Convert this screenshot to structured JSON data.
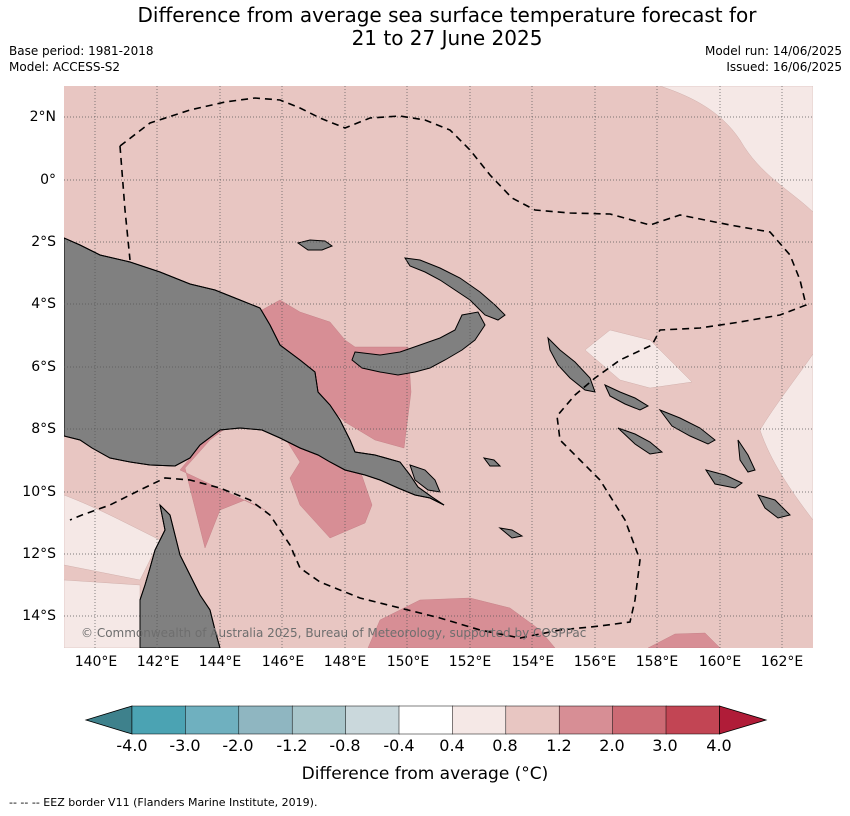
{
  "header": {
    "title_line1": "Difference from average sea surface temperature forecast for",
    "title_line2": "21 to 27 June 2025",
    "base_period": "Base period: 1981-2018",
    "model": "Model: ACCESS-S2",
    "model_run": "Model run: 14/06/2025",
    "issued": "Issued: 16/06/2025"
  },
  "map": {
    "latitude_labels": [
      "2°N",
      "0°",
      "2°S",
      "4°S",
      "6°S",
      "8°S",
      "10°S",
      "12°S",
      "14°S"
    ],
    "longitude_labels": [
      "140°E",
      "142°E",
      "144°E",
      "146°E",
      "148°E",
      "150°E",
      "152°E",
      "154°E",
      "156°E",
      "158°E",
      "160°E",
      "162°E"
    ],
    "copyright": "© Commonwealth of Australia 2025, Bureau of Meteorology, supported by COSPPac",
    "colors": {
      "ocean_base": "#e8c6c2",
      "light_anomaly": "#f5e8e6",
      "moderate_anomaly": "#d78e95",
      "land": "#808080",
      "eez_border": "#000000"
    }
  },
  "colorbar": {
    "tick_labels": [
      "-4.0",
      "-3.0",
      "-2.0",
      "-1.2",
      "-0.8",
      "-0.4",
      "0.4",
      "0.8",
      "1.2",
      "2.0",
      "3.0",
      "4.0"
    ],
    "colors": [
      "#3e818c",
      "#4ba3b3",
      "#6fb0bf",
      "#8fb6c1",
      "#a9c6cb",
      "#cad8dc",
      "#ffffff",
      "#f5e8e6",
      "#e8c6c2",
      "#d78e95",
      "#cc6a74",
      "#c24554",
      "#b01c38"
    ],
    "title": "Difference from average (°C)"
  },
  "footnote": "--  --  -- EEZ border V11 (Flanders Marine Institute, 2019)."
}
